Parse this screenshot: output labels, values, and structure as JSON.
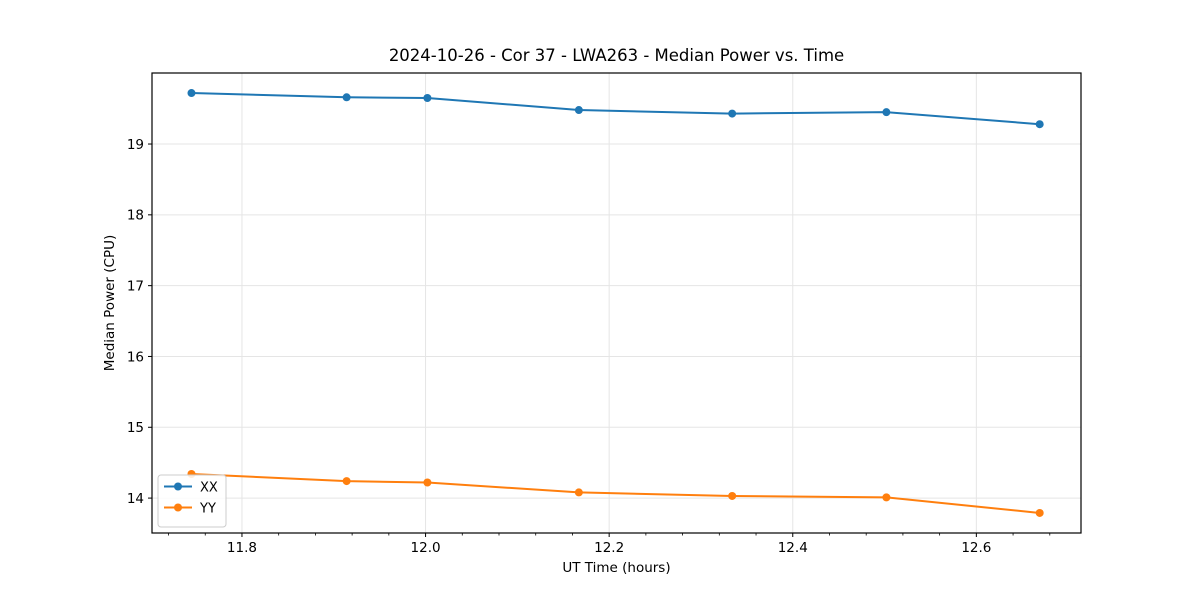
{
  "chart_data": {
    "type": "line",
    "title": "2024-10-26 - Cor 37 - LWA263 - Median Power vs. Time",
    "xlabel": "UT Time (hours)",
    "ylabel": "Median Power (CPU)",
    "xlim": [
      11.702,
      12.714
    ],
    "ylim": [
      13.507,
      20.003
    ],
    "x_major_ticks": [
      11.8,
      12.0,
      12.2,
      12.4,
      12.6
    ],
    "x_minor_step": 0.04,
    "y_major_ticks": [
      14,
      15,
      16,
      17,
      18,
      19
    ],
    "grid": true,
    "legend_position": "lower left",
    "x": [
      11.745,
      11.914,
      12.002,
      12.167,
      12.334,
      12.502,
      12.669
    ],
    "series": [
      {
        "name": "XX",
        "color": "#1f77b4",
        "values": [
          19.72,
          19.66,
          19.65,
          19.48,
          19.43,
          19.45,
          19.28
        ]
      },
      {
        "name": "YY",
        "color": "#ff7f0e",
        "values": [
          14.34,
          14.24,
          14.22,
          14.08,
          14.03,
          14.01,
          13.79
        ]
      }
    ],
    "style_colors": {
      "spine": "#000000",
      "grid": "#e5e5e5",
      "tick": "#000000",
      "legend_border": "#cccccc",
      "legend_bg": "#ffffff"
    }
  }
}
